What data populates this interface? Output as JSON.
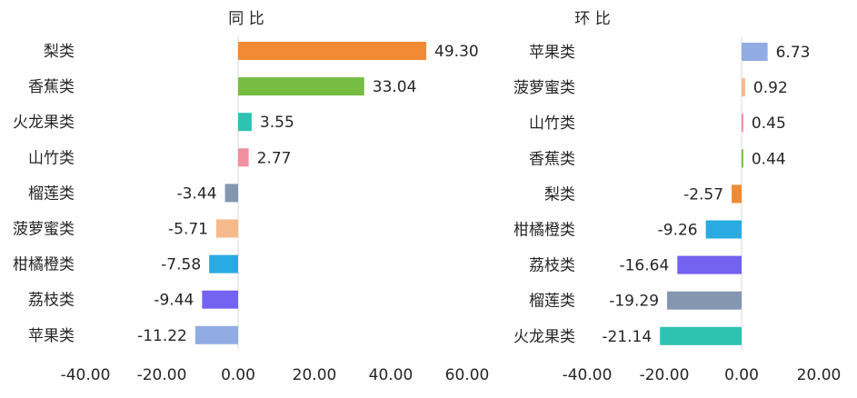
{
  "chart_data": [
    {
      "type": "bar",
      "orientation": "horizontal",
      "title": "同 比",
      "categories": [
        "梨类",
        "香蕉类",
        "火龙果类",
        "山竹类",
        "榴莲类",
        "菠萝蜜类",
        "柑橘橙类",
        "荔枝类",
        "苹果类"
      ],
      "values": [
        49.3,
        33.04,
        3.55,
        2.77,
        -3.44,
        -5.71,
        -7.58,
        -9.44,
        -11.22
      ],
      "value_labels": [
        "49.30",
        "33.04",
        "3.55",
        "2.77",
        "-3.44",
        "-5.71",
        "-7.58",
        "-9.44",
        "-11.22"
      ],
      "colors": [
        "#F08A34",
        "#77BC43",
        "#2EC2B3",
        "#F0909E",
        "#8497B0",
        "#F5B98B",
        "#29ABE2",
        "#7462F0",
        "#91ACE3"
      ],
      "xlim": [
        -40,
        60
      ],
      "xticks": [
        "-40.00",
        "-20.00",
        "0.00",
        "20.00",
        "40.00",
        "60.00"
      ],
      "xtick_values": [
        -40,
        -20,
        0,
        20,
        40,
        60
      ],
      "grid": false
    },
    {
      "type": "bar",
      "orientation": "horizontal",
      "title": "环 比",
      "categories": [
        "苹果类",
        "菠萝蜜类",
        "山竹类",
        "香蕉类",
        "梨类",
        "柑橘橙类",
        "荔枝类",
        "榴莲类",
        "火龙果类"
      ],
      "values": [
        6.73,
        0.92,
        0.45,
        0.44,
        -2.57,
        -9.26,
        -16.64,
        -19.29,
        -21.14
      ],
      "value_labels": [
        "6.73",
        "0.92",
        "0.45",
        "0.44",
        "-2.57",
        "-9.26",
        "-16.64",
        "-19.29",
        "-21.14"
      ],
      "colors": [
        "#91ACE3",
        "#F5B98B",
        "#F0909E",
        "#77BC43",
        "#F08A34",
        "#29ABE2",
        "#7462F0",
        "#8497B0",
        "#2EC2B3"
      ],
      "xlim": [
        -40,
        20
      ],
      "xticks": [
        "-40.00",
        "-20.00",
        "0.00",
        "20.00"
      ],
      "xtick_values": [
        -40,
        -20,
        0,
        20
      ],
      "grid": false
    }
  ]
}
